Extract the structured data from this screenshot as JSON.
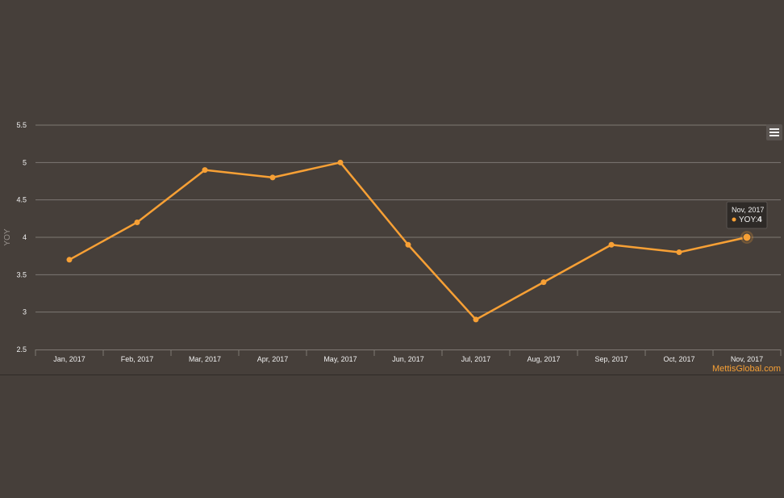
{
  "chart_data": {
    "type": "line",
    "title": "",
    "xlabel": "",
    "ylabel": "YOY",
    "categories": [
      "Jan, 2017",
      "Feb, 2017",
      "Mar, 2017",
      "Apr, 2017",
      "May, 2017",
      "Jun, 2017",
      "Jul, 2017",
      "Aug, 2017",
      "Sep, 2017",
      "Oct, 2017",
      "Nov, 2017"
    ],
    "series": [
      {
        "name": "YOY",
        "values": [
          3.7,
          4.2,
          4.9,
          4.8,
          5.0,
          3.9,
          2.9,
          3.4,
          3.9,
          3.8,
          4.0
        ]
      }
    ],
    "ylim": [
      2.5,
      5.5
    ],
    "yticks": [
      "2.5",
      "3",
      "3.5",
      "4",
      "4.5",
      "5",
      "5.5"
    ],
    "grid": true,
    "legend": "none"
  },
  "tooltip": {
    "title": "Nov, 2017",
    "series_label": "YOY:",
    "value": "4",
    "index": 10
  },
  "credit": "MettisGlobal.com",
  "menu_icon": "hamburger-menu-icon",
  "colors": {
    "background": "#463f3a",
    "line": "#f7a035",
    "grid": "#7e7873",
    "text": "#f0f0f0",
    "credit": "#f7a035"
  }
}
